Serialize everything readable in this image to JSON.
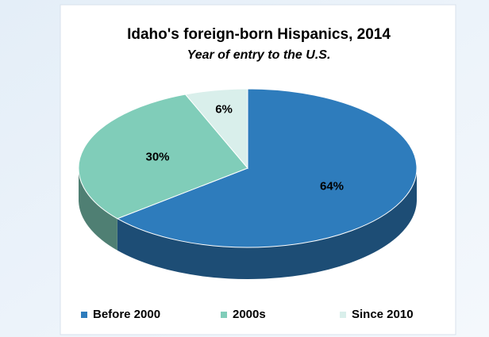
{
  "chart_data": {
    "type": "pie",
    "title": "Idaho's foreign-born Hispanics, 2014",
    "subtitle": "Year of entry to the U.S.",
    "categories": [
      "Before 2000",
      "2000s",
      "Since 2010"
    ],
    "values": [
      64,
      30,
      6
    ],
    "value_labels": [
      "64%",
      "30%",
      "6%"
    ],
    "colors": [
      "#2e7cbc",
      "#80cdb9",
      "#d9efeb"
    ],
    "legend": "bottom"
  }
}
